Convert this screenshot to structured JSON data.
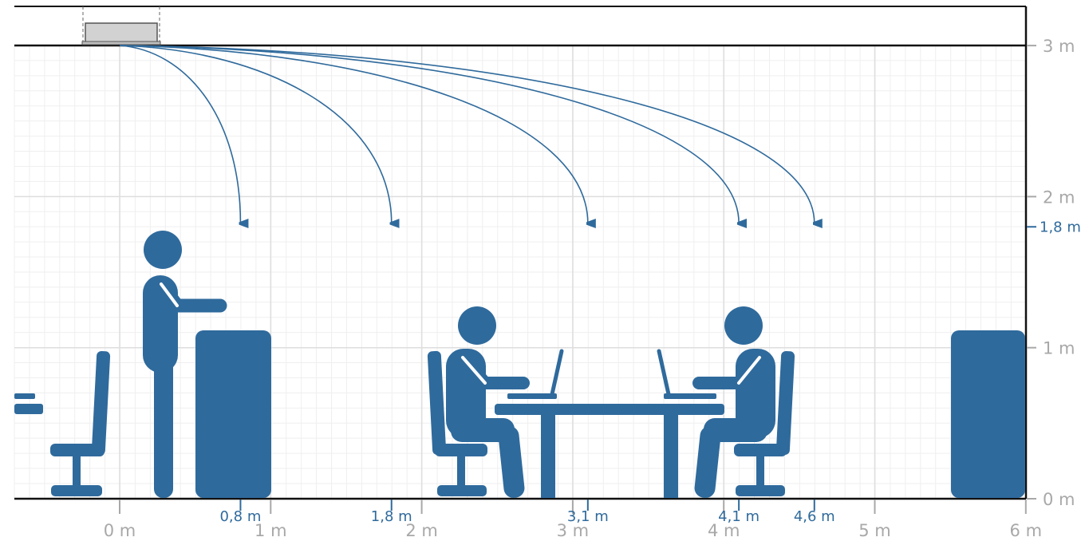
{
  "colors": {
    "figure": "#2f6a9c",
    "arrow": "#2f6a9c",
    "axis_text": "#a8a8a8",
    "marker_text": "#2f6a9c",
    "grid_minor": "#efefef",
    "grid_major": "#dedede",
    "ceiling_unit": "#d2d2d2"
  },
  "axes": {
    "x_ticks": [
      {
        "value": 0,
        "label": "0 m"
      },
      {
        "value": 1,
        "label": "1 m"
      },
      {
        "value": 2,
        "label": "2 m"
      },
      {
        "value": 3,
        "label": "3 m"
      },
      {
        "value": 4,
        "label": "4 m"
      },
      {
        "value": 5,
        "label": "5 m"
      },
      {
        "value": 6,
        "label": "6 m"
      }
    ],
    "y_ticks": [
      {
        "value": 3,
        "label": "3 m"
      },
      {
        "value": 2,
        "label": "2 m"
      },
      {
        "value": 1,
        "label": "1 m"
      },
      {
        "value": 0,
        "label": "0 m"
      }
    ],
    "y_marker": {
      "value": 1.8,
      "label": "1,8 m"
    }
  },
  "throws": [
    {
      "distance": 0.8,
      "label": "0,8 m"
    },
    {
      "distance": 1.8,
      "label": "1,8 m"
    },
    {
      "distance": 3.1,
      "label": "3,1 m"
    },
    {
      "distance": 4.1,
      "label": "4,1 m"
    },
    {
      "distance": 4.6,
      "label": "4,6 m"
    }
  ],
  "icons": {
    "ceiling_unit": "ceiling-air-outlet-icon",
    "standing_person": "standing-person-icon",
    "seated_person": "seated-person-icon",
    "chair": "office-chair-icon",
    "cabinet": "cabinet-icon",
    "table": "table-icon",
    "laptop": "laptop-icon",
    "shelf": "shelf-icon"
  }
}
